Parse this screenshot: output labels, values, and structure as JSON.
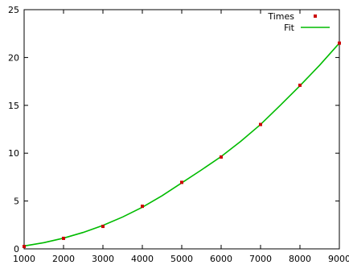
{
  "chart_data": {
    "type": "scatter",
    "title": "",
    "xlabel": "",
    "ylabel": "",
    "xlim": [
      1000,
      9000
    ],
    "ylim": [
      0,
      25
    ],
    "x_ticks": [
      1000,
      2000,
      3000,
      4000,
      5000,
      6000,
      7000,
      8000,
      9000
    ],
    "y_ticks": [
      0,
      5,
      10,
      15,
      20,
      25
    ],
    "grid": false,
    "legend_position": "top-right",
    "series": [
      {
        "name": "Times",
        "kind": "points",
        "color": "#cc0000",
        "x": [
          1000,
          2000,
          3000,
          4000,
          5000,
          6000,
          7000,
          8000,
          9000
        ],
        "y": [
          0.25,
          1.1,
          2.35,
          4.45,
          6.95,
          9.6,
          13.0,
          17.1,
          21.5
        ]
      },
      {
        "name": "Fit",
        "kind": "line",
        "color": "#00bb00",
        "x": [
          1000,
          1500,
          2000,
          2500,
          3000,
          3500,
          4000,
          4500,
          5000,
          5500,
          6000,
          6500,
          7000,
          7500,
          8000,
          8500,
          9000
        ],
        "y": [
          0.3,
          0.65,
          1.12,
          1.72,
          2.45,
          3.33,
          4.35,
          5.55,
          6.9,
          8.25,
          9.65,
          11.25,
          13.0,
          15.0,
          17.05,
          19.2,
          21.5
        ]
      }
    ]
  }
}
